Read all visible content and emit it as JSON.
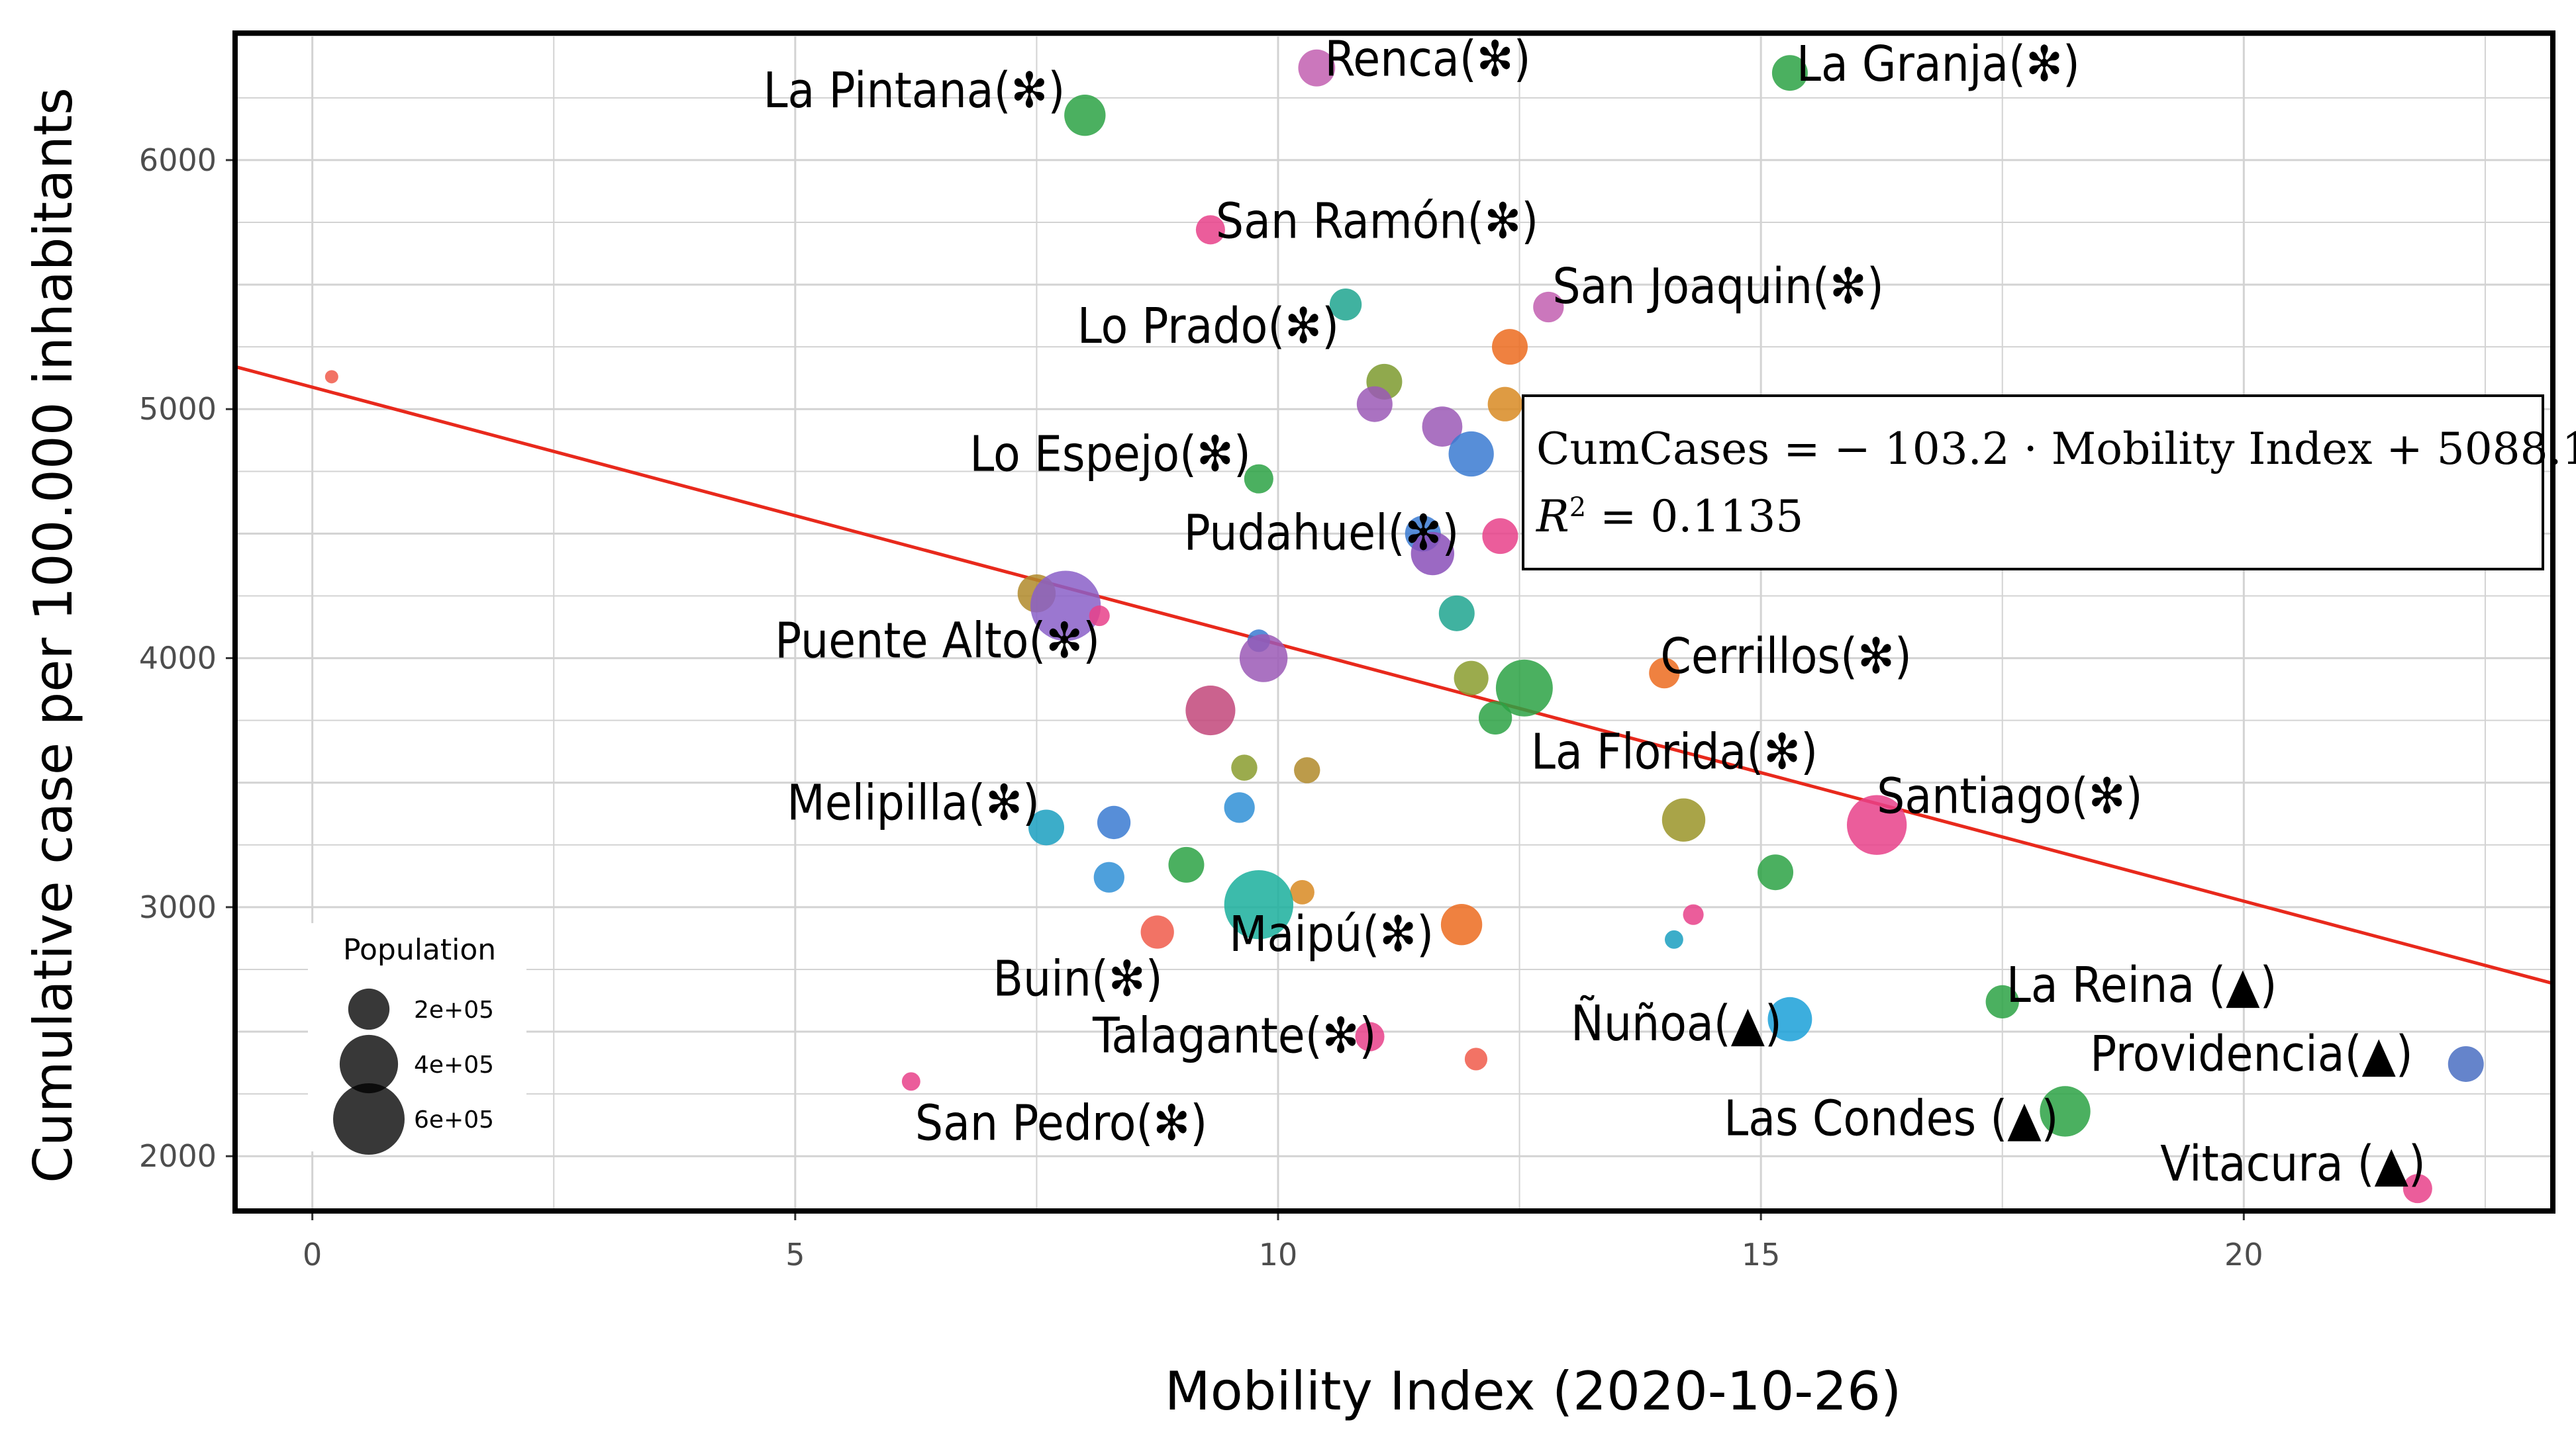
{
  "chart_data": {
    "type": "scatter",
    "title": "",
    "xlabel": "Mobility Index (2020-10-26)",
    "ylabel": "Cumulative case per 100.000 inhabitants",
    "xlim": [
      -0.8,
      23.2
    ],
    "ylim": [
      1780,
      6510
    ],
    "xticks": [
      0,
      5,
      10,
      15,
      20
    ],
    "yticks": [
      2000,
      3000,
      4000,
      5000,
      6000
    ],
    "grid": true,
    "regression": {
      "slope": -103.2,
      "intercept": 5088.1,
      "line1": "CumCases = − 103.2 · Mobility Index + 5088.1",
      "line2_prefix": "R",
      "line2_sup": "2",
      "line2_rest": " = 0.1135",
      "color": "#e8291c"
    },
    "legend": {
      "title": "Population",
      "position": "bottom-left",
      "entries": [
        {
          "label": "2e+05",
          "population": 200000
        },
        {
          "label": "4e+05",
          "population": 400000
        },
        {
          "label": "6e+05",
          "population": 600000
        }
      ]
    },
    "points": [
      {
        "x": 0.2,
        "y": 5130,
        "size": 20000,
        "color": "#f05a4a",
        "label": ""
      },
      {
        "x": 8.0,
        "y": 6180,
        "size": 200000,
        "color": "#2ca244",
        "label": "La Pintana(✻)"
      },
      {
        "x": 10.4,
        "y": 6370,
        "size": 160000,
        "color": "#c25fb0",
        "label": "Renca(✻)"
      },
      {
        "x": 15.3,
        "y": 6350,
        "size": 150000,
        "color": "#2ca244",
        "label": "La Granja(✻)"
      },
      {
        "x": 9.3,
        "y": 5720,
        "size": 100000,
        "color": "#e8418a",
        "label": "San Ramón(✻)"
      },
      {
        "x": 12.8,
        "y": 5410,
        "size": 110000,
        "color": "#c25fb0",
        "label": "San Joaquin(✻)"
      },
      {
        "x": 10.7,
        "y": 5420,
        "size": 120000,
        "color": "#1fa58f",
        "label": "Lo Prado(✻)"
      },
      {
        "x": 12.4,
        "y": 5250,
        "size": 150000,
        "color": "#ec6b1e",
        "label": ""
      },
      {
        "x": 11.1,
        "y": 5110,
        "size": 150000,
        "color": "#7c9a2e",
        "label": ""
      },
      {
        "x": 12.35,
        "y": 5020,
        "size": 140000,
        "color": "#d88a22",
        "label": ""
      },
      {
        "x": 11.0,
        "y": 5020,
        "size": 150000,
        "color": "#9b59b6",
        "label": ""
      },
      {
        "x": 11.7,
        "y": 4930,
        "size": 190000,
        "color": "#9b59b6",
        "label": ""
      },
      {
        "x": 12.0,
        "y": 4820,
        "size": 240000,
        "color": "#3a7ad1",
        "label": ""
      },
      {
        "x": 9.8,
        "y": 4720,
        "size": 100000,
        "color": "#2ca244",
        "label": "Lo Espejo(✻)"
      },
      {
        "x": 11.5,
        "y": 4500,
        "size": 150000,
        "color": "#3a7ad1",
        "label": ""
      },
      {
        "x": 12.3,
        "y": 4490,
        "size": 150000,
        "color": "#e8418a",
        "label": ""
      },
      {
        "x": 11.6,
        "y": 4420,
        "size": 220000,
        "color": "#8a4fb8",
        "label": "Pudahuel(✻)"
      },
      {
        "x": 7.5,
        "y": 4260,
        "size": 170000,
        "color": "#b08a2a",
        "label": ""
      },
      {
        "x": 7.8,
        "y": 4210,
        "size": 580000,
        "color": "#8a5fc8",
        "label": "Puente Alto(✻)"
      },
      {
        "x": 8.15,
        "y": 4170,
        "size": 50000,
        "color": "#e8418a",
        "label": ""
      },
      {
        "x": 11.85,
        "y": 4180,
        "size": 150000,
        "color": "#1fa58f",
        "label": ""
      },
      {
        "x": 9.8,
        "y": 4070,
        "size": 60000,
        "color": "#3a7ad1",
        "label": ""
      },
      {
        "x": 9.85,
        "y": 4000,
        "size": 270000,
        "color": "#9b59b6",
        "label": ""
      },
      {
        "x": 14.0,
        "y": 3940,
        "size": 110000,
        "color": "#ec6b1e",
        "label": "Cerrillos(✻)"
      },
      {
        "x": 12.0,
        "y": 3920,
        "size": 140000,
        "color": "#8a9c2e",
        "label": ""
      },
      {
        "x": 12.55,
        "y": 3880,
        "size": 380000,
        "color": "#2ca244",
        "label": "La Florida(✻)"
      },
      {
        "x": 9.3,
        "y": 3790,
        "size": 290000,
        "color": "#c2467a",
        "label": ""
      },
      {
        "x": 12.25,
        "y": 3760,
        "size": 130000,
        "color": "#2ca244",
        "label": ""
      },
      {
        "x": 9.65,
        "y": 3560,
        "size": 80000,
        "color": "#8a9c2e",
        "label": ""
      },
      {
        "x": 10.3,
        "y": 3550,
        "size": 80000,
        "color": "#b08a2a",
        "label": ""
      },
      {
        "x": 9.6,
        "y": 3400,
        "size": 110000,
        "color": "#2f8fd6",
        "label": ""
      },
      {
        "x": 14.2,
        "y": 3350,
        "size": 220000,
        "color": "#9a9428",
        "label": ""
      },
      {
        "x": 16.2,
        "y": 3330,
        "size": 420000,
        "color": "#e8418a",
        "label": "Santiago(✻)"
      },
      {
        "x": 8.3,
        "y": 3340,
        "size": 130000,
        "color": "#3a7ad1",
        "label": ""
      },
      {
        "x": 7.6,
        "y": 3320,
        "size": 150000,
        "color": "#1a9fbf",
        "label": "Melipilla(✻)"
      },
      {
        "x": 9.05,
        "y": 3170,
        "size": 150000,
        "color": "#2ca244",
        "label": ""
      },
      {
        "x": 15.15,
        "y": 3140,
        "size": 150000,
        "color": "#2ca244",
        "label": ""
      },
      {
        "x": 8.25,
        "y": 3120,
        "size": 110000,
        "color": "#2f8fd6",
        "label": ""
      },
      {
        "x": 10.25,
        "y": 3060,
        "size": 70000,
        "color": "#d88a22",
        "label": ""
      },
      {
        "x": 9.8,
        "y": 3010,
        "size": 560000,
        "color": "#1aaf9c",
        "label": ""
      },
      {
        "x": 14.3,
        "y": 2970,
        "size": 50000,
        "color": "#e8418a",
        "label": ""
      },
      {
        "x": 11.9,
        "y": 2930,
        "size": 200000,
        "color": "#ec6b1e",
        "label": "Maipú(✻)"
      },
      {
        "x": 8.75,
        "y": 2900,
        "size": 130000,
        "color": "#f05a4a",
        "label": "Buin(✻)"
      },
      {
        "x": 14.1,
        "y": 2870,
        "size": 40000,
        "color": "#1a9fbf",
        "label": ""
      },
      {
        "x": 17.5,
        "y": 2620,
        "size": 130000,
        "color": "#2ca244",
        "label": "La Reina (▲)"
      },
      {
        "x": 15.3,
        "y": 2550,
        "size": 230000,
        "color": "#1aa0d8",
        "label": "Ñuñoa(▲)"
      },
      {
        "x": 10.95,
        "y": 2480,
        "size": 100000,
        "color": "#e8418a",
        "label": "Talagante(✻)"
      },
      {
        "x": 12.05,
        "y": 2390,
        "size": 60000,
        "color": "#f05a4a",
        "label": ""
      },
      {
        "x": 22.3,
        "y": 2370,
        "size": 150000,
        "color": "#4a6fc2",
        "label": "Providencia(▲)"
      },
      {
        "x": 6.2,
        "y": 2300,
        "size": 40000,
        "color": "#e8418a",
        "label": "San Pedro(✻)"
      },
      {
        "x": 18.15,
        "y": 2180,
        "size": 300000,
        "color": "#2ca244",
        "label": "Las Condes (▲)"
      },
      {
        "x": 21.8,
        "y": 1870,
        "size": 100000,
        "color": "#e8418a",
        "label": "Vitacura (▲)"
      }
    ]
  }
}
